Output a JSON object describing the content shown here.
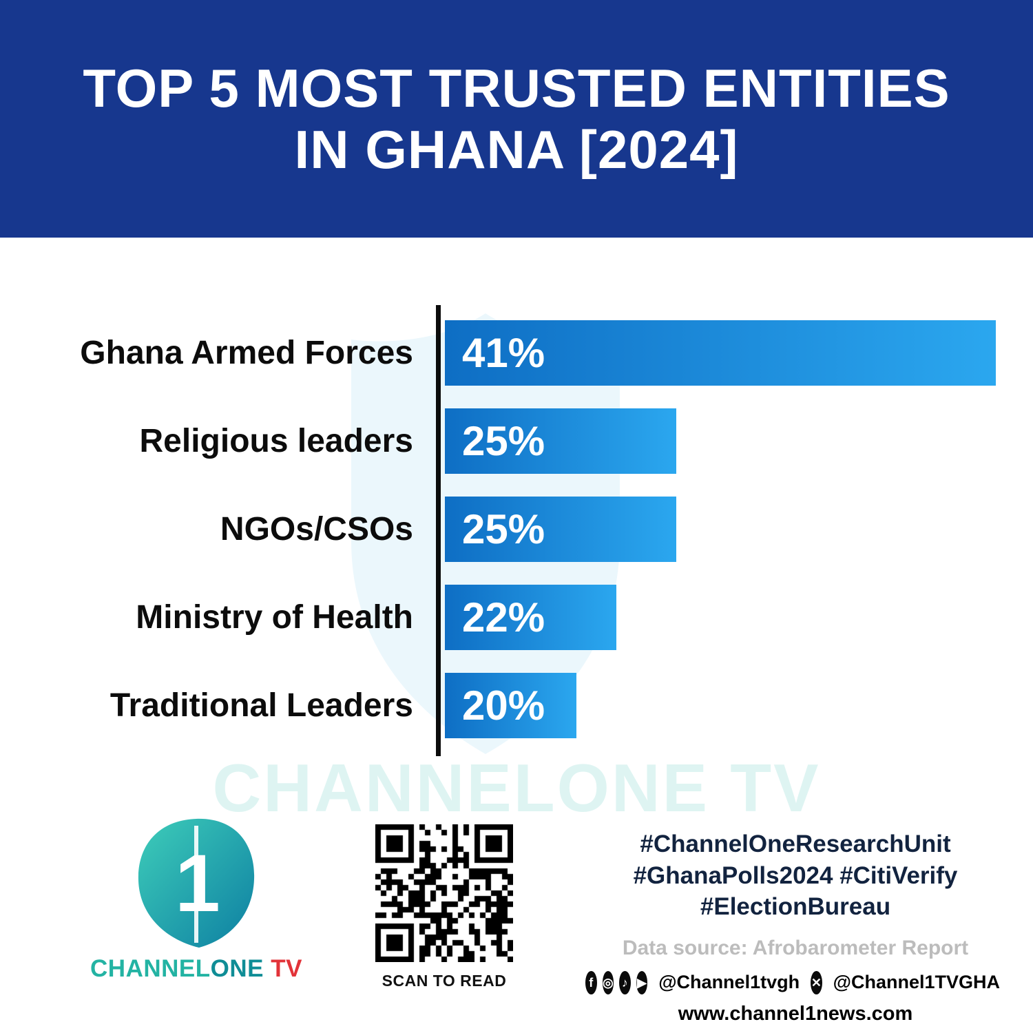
{
  "banner": {
    "title_line1": "TOP 5 MOST TRUSTED ENTITIES",
    "title_line2": "IN GHANA [2024]",
    "background_color": "#17378e",
    "text_color": "#ffffff"
  },
  "chart_data": {
    "type": "bar",
    "orientation": "horizontal",
    "title": "TOP 5 MOST TRUSTED ENTITIES IN GHANA [2024]",
    "categories": [
      "Ghana Armed Forces",
      "Religious leaders",
      "NGOs/CSOs",
      "Ministry of Health",
      "Traditional Leaders"
    ],
    "values": [
      41,
      25,
      25,
      22,
      20
    ],
    "value_labels": [
      "41%",
      "25%",
      "25%",
      "22%",
      "20%"
    ],
    "unit": "%",
    "xlim": [
      0,
      41
    ],
    "grid": false,
    "legend": false,
    "bar_gradient": [
      "#0e6ec4",
      "#2ba7ef"
    ],
    "source": "Afrobarometer Report"
  },
  "watermark": {
    "text": "CHANNELONE TV"
  },
  "footer": {
    "brand": {
      "part1": "CHANNEL",
      "part2": "ONE",
      "part3": " TV",
      "logo_numeral": "1"
    },
    "qr_caption": "SCAN TO READ",
    "hashtags": [
      "#ChannelOneResearchUnit",
      "#GhanaPolls2024 #CitiVerify",
      "#ElectionBureau"
    ],
    "data_source": "Data source: Afrobarometer Report",
    "icons": [
      {
        "name": "facebook-icon",
        "glyph": "f"
      },
      {
        "name": "instagram-icon",
        "glyph": "◎"
      },
      {
        "name": "tiktok-icon",
        "glyph": "♪"
      },
      {
        "name": "youtube-icon",
        "glyph": "▶"
      }
    ],
    "x_icon": {
      "name": "x-icon",
      "glyph": "✕"
    },
    "handle1": "@Channel1tvgh",
    "handle2": "@Channel1TVGHA",
    "website": "www.channel1news.com"
  },
  "colors": {
    "banner_blue": "#17378e",
    "bar_start": "#0e6ec4",
    "bar_end": "#2ba7ef",
    "brand_teal": "#23b3a3",
    "brand_red": "#e23339",
    "hashtag_navy": "#12233f",
    "source_grey": "#bcbcbc"
  }
}
